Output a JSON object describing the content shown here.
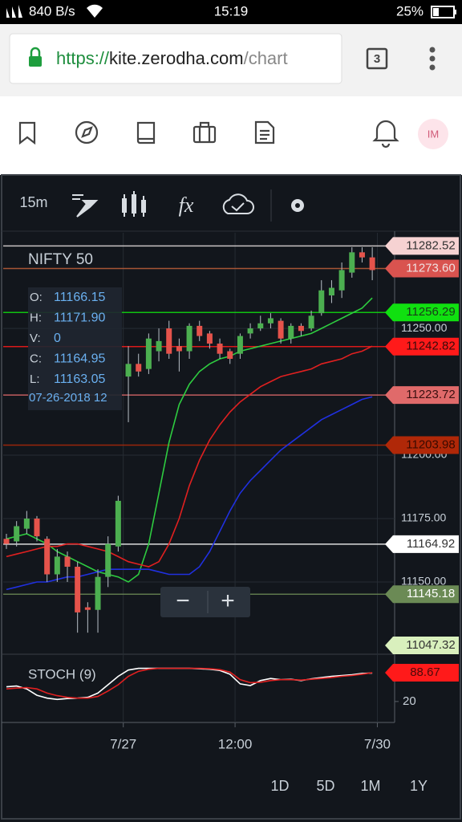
{
  "status_bar": {
    "speed": "840 B/s",
    "time": "15:19",
    "battery": "25%"
  },
  "browser": {
    "url_scheme": "https://",
    "url_host": "kite.zerodha.com",
    "url_path": "/chart",
    "tabs": "3"
  },
  "app_toolbar": {
    "avatar": "IM"
  },
  "chart_toolbar": {
    "interval": "15m"
  },
  "zoom": {
    "minus": "−",
    "plus": "+"
  },
  "ranges": [
    "1D",
    "5D",
    "1M",
    "1Y"
  ],
  "chart_data": {
    "type": "candlestick",
    "title": "NIFTY 50",
    "info": {
      "labels": [
        "O:",
        "H:",
        "V:",
        "C:",
        "L:"
      ],
      "values": [
        "11166.15",
        "11171.90",
        "0",
        "11164.95",
        "11163.05"
      ],
      "date": "07-26-2018 12"
    },
    "categories": [
      null,
      null,
      null,
      null,
      null,
      null,
      null,
      null,
      null,
      null,
      null,
      null,
      null,
      null,
      null,
      null,
      null,
      null,
      null,
      null,
      null,
      null,
      null,
      null,
      null,
      null,
      null,
      null,
      null,
      null,
      null,
      null,
      null,
      null,
      null,
      null,
      null
    ],
    "open": [
      11167,
      11166,
      11171,
      11175,
      11167,
      11153,
      11160,
      11156,
      11140,
      11139,
      11152,
      11164,
      11231,
      11236,
      11234,
      11241,
      11250,
      11243,
      11241,
      11251,
      11248,
      11244,
      11241,
      11240,
      11248,
      11250,
      11252,
      11253,
      11246,
      11251,
      11250,
      11256,
      11263,
      11265,
      11272,
      11280,
      11278
    ],
    "high": [
      11169,
      11174,
      11178,
      11176,
      11168,
      11163,
      11162,
      11158,
      11142,
      11155,
      11168,
      11184,
      11243,
      11240,
      11248,
      11250,
      11253,
      11246,
      11252,
      11253,
      11249,
      11246,
      11242,
      11248,
      11252,
      11255,
      11256,
      11254,
      11252,
      11252,
      11257,
      11269,
      11269,
      11276,
      11282,
      11282,
      11282
    ],
    "low": [
      11163,
      11164,
      11169,
      11166,
      11150,
      11150,
      11150,
      11130,
      11130,
      11130,
      11148,
      11162,
      11213,
      11231,
      11232,
      11237,
      11238,
      11233,
      11238,
      11245,
      11242,
      11238,
      11236,
      11238,
      11246,
      11249,
      11250,
      11244,
      11244,
      11247,
      11249,
      11255,
      11260,
      11262,
      11270,
      11276,
      11269
    ],
    "close": [
      11165,
      11172,
      11175,
      11168,
      11153,
      11160,
      11156,
      11138,
      11139,
      11152,
      11165,
      11182,
      11236,
      11233,
      11246,
      11245,
      11240,
      11241,
      11251,
      11247,
      11244,
      11240,
      11238,
      11247,
      11250,
      11252,
      11254,
      11246,
      11251,
      11249,
      11255,
      11265,
      11266,
      11273,
      11280,
      11278,
      11273
    ],
    "up_color": "#4caf50",
    "down_color": "#e5534b",
    "lines": [
      {
        "color": "#2ecc40",
        "values": [
          11167,
          11168,
          11169,
          11167,
          11165,
          11162,
          11160,
          11158,
          11156,
          11154,
          11153,
          11152,
          11150,
          11153,
          11165,
          11185,
          11205,
          11220,
          11228,
          11233,
          11236,
          11238,
          11239,
          11241,
          11242,
          11243,
          11244,
          11245,
          11246,
          11247,
          11248,
          11250,
          11252,
          11254,
          11256,
          11258,
          11262
        ]
      },
      {
        "color": "#e02020",
        "values": [
          11160,
          11161,
          11162,
          11163,
          11164,
          11164,
          11165,
          11165,
          11164,
          11163,
          11162,
          11160,
          11158,
          11157,
          11156,
          11158,
          11165,
          11175,
          11188,
          11198,
          11206,
          11212,
          11217,
          11221,
          11224,
          11227,
          11229,
          11231,
          11232,
          11233,
          11234,
          11236,
          11237,
          11238,
          11240,
          11241,
          11243
        ]
      },
      {
        "color": "#2030e0",
        "values": [
          11147,
          11148,
          11149,
          11150,
          11150,
          11151,
          11152,
          11152,
          11153,
          11154,
          11155,
          11155,
          11155,
          11155,
          11155,
          11154,
          11153,
          11153,
          11153,
          11156,
          11162,
          11170,
          11178,
          11185,
          11190,
          11194,
          11198,
          11202,
          11205,
          11208,
          11211,
          11214,
          11216,
          11218,
          11220,
          11222,
          11223
        ]
      }
    ],
    "ylim": [
      11121.5,
      11287.7
    ],
    "yticks": [
      {
        "value": 11250,
        "label": "11250.00"
      },
      {
        "value": 11200,
        "label": "11200.00"
      },
      {
        "value": 11175,
        "label": "11175.00"
      },
      {
        "value": 11150,
        "label": "11150.00"
      }
    ],
    "xticks": [
      {
        "value": 12,
        "label": "7/27"
      },
      {
        "value": 23,
        "label": "12:00"
      },
      {
        "value": 37,
        "label": "7/30"
      }
    ],
    "grid": true,
    "price_tags": [
      {
        "value": 11282.52,
        "label": "11282.52",
        "color": "#f6d2d2",
        "text_color": "#333333",
        "line_color": "#e8e0e0"
      },
      {
        "value": 11273.6,
        "label": "11273.60",
        "color": "#d9534f",
        "text_color": "#f0e0e0",
        "line_color": "#c0603a"
      },
      {
        "value": 11256.29,
        "label": "11256.29",
        "color": "#10e010",
        "text_color": "#1a3a1a",
        "line_color": "#10e010"
      },
      {
        "value": 11242.82,
        "label": "11242.82",
        "color": "#ff1a1a",
        "text_color": "#3a0a0a",
        "line_color": "#ff1a1a"
      },
      {
        "value": 11223.72,
        "label": "11223.72",
        "color": "#e06a6a",
        "text_color": "#3a1010",
        "line_color": "#e06a6a"
      },
      {
        "value": 11203.98,
        "label": "11203.98",
        "color": "#b02808",
        "text_color": "#3a0a00",
        "line_color": "#b02808"
      },
      {
        "value": 11164.92,
        "label": "11164.92",
        "color": "#ffffff",
        "text_color": "#333333",
        "line_color": "#ffffff"
      },
      {
        "value": 11145.18,
        "label": "11145.18",
        "color": "#6b8a55",
        "text_color": "#ffffff",
        "line_color": "#6b8a55"
      },
      {
        "value": 11047.32,
        "label": "11047.32",
        "color": "#d9f0bd",
        "text_color": "#333333",
        "line_color": "#ffffff"
      }
    ],
    "stoch": {
      "title": "STOCH (9)",
      "ylim": [
        -30,
        127
      ],
      "yticks": [
        20
      ],
      "tag": 88.67,
      "tag_color": "#ff1a1a",
      "k": {
        "color": "#ffffff",
        "values": [
          55,
          57,
          50,
          35,
          28,
          25,
          27,
          28,
          30,
          40,
          60,
          80,
          95,
          99,
          99,
          99,
          99,
          99,
          99,
          98,
          97,
          94,
          85,
          62,
          58,
          70,
          75,
          72,
          73,
          70,
          74,
          77,
          80,
          82,
          84,
          87,
          88
        ]
      },
      "d": {
        "color": "#e02020",
        "values": [
          50,
          52,
          53,
          50,
          40,
          34,
          30,
          28,
          28,
          32,
          45,
          60,
          80,
          92,
          97,
          99,
          99,
          99,
          99,
          99,
          98,
          96,
          90,
          72,
          65,
          66,
          70,
          72,
          72,
          71,
          73,
          75,
          77,
          80,
          82,
          85,
          88.67
        ]
      }
    }
  }
}
